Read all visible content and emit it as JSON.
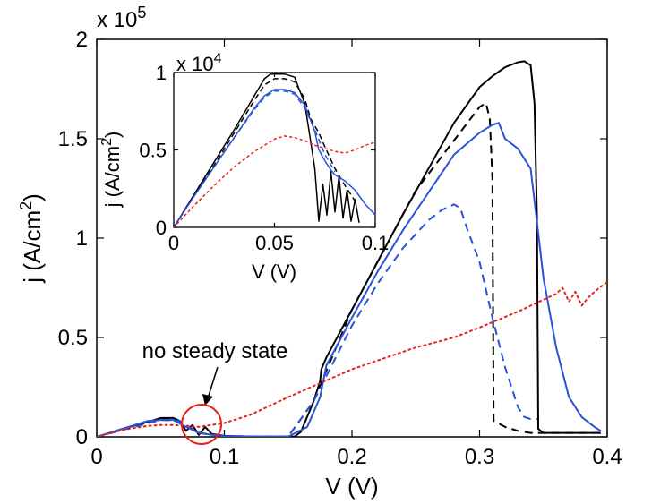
{
  "chart_data": [
    {
      "type": "line",
      "panel": "main",
      "xlabel": "V (V)",
      "ylabel_main": "j (A/cm",
      "ylabel_sup": "2",
      "ylabel_close": ")",
      "xlim": [
        0,
        0.4
      ],
      "ylim": [
        0,
        200000
      ],
      "x_ticks": [
        0,
        0.1,
        0.2,
        0.3,
        0.4
      ],
      "x_tick_labels": [
        "0",
        "0.1",
        "0.2",
        "0.3",
        "0.4"
      ],
      "y_ticks": [
        0,
        50000,
        100000,
        150000,
        200000
      ],
      "y_tick_labels": [
        "0",
        "0.5",
        "1",
        "1.5",
        "2"
      ],
      "exponent_prefix": "x 10",
      "exponent_power": "5",
      "series": [
        {
          "name": "black-solid",
          "color": "#000000",
          "style": "solid",
          "x": [
            0,
            0.02,
            0.04,
            0.05,
            0.06,
            0.065,
            0.07,
            0.075,
            0.08,
            0.085,
            0.09,
            0.1,
            0.12,
            0.14,
            0.155,
            0.16,
            0.17,
            0.175,
            0.176,
            0.18,
            0.2,
            0.22,
            0.24,
            0.26,
            0.28,
            0.3,
            0.31,
            0.32,
            0.33,
            0.335,
            0.34,
            0.343,
            0.345,
            0.346,
            0.35,
            0.36,
            0.38,
            0.395
          ],
          "y": [
            0,
            4000,
            7500,
            9500,
            9500,
            8000,
            3000,
            6000,
            1000,
            5000,
            1500,
            500,
            200,
            100,
            100,
            2500,
            18000,
            28000,
            34000,
            40000,
            64000,
            88000,
            112000,
            135000,
            158000,
            176000,
            181500,
            186000,
            188500,
            189000,
            187000,
            168000,
            110000,
            4000,
            2000,
            2000,
            2000,
            2000
          ]
        },
        {
          "name": "black-dashed",
          "color": "#000000",
          "style": "dashed",
          "x": [
            0,
            0.05,
            0.065,
            0.08,
            0.1,
            0.15,
            0.17,
            0.2,
            0.25,
            0.3,
            0.305,
            0.308,
            0.31,
            0.311,
            0.32,
            0.33,
            0.34,
            0.36,
            0.38,
            0.395
          ],
          "y": [
            0,
            9000,
            8000,
            2000,
            300,
            100,
            18000,
            64000,
            124000,
            166000,
            168000,
            160000,
            130000,
            8000,
            5000,
            3000,
            2000,
            2000,
            2000,
            2000
          ]
        },
        {
          "name": "blue-solid",
          "color": "#2a52d8",
          "style": "solid",
          "x": [
            0,
            0.02,
            0.04,
            0.05,
            0.06,
            0.07,
            0.08,
            0.09,
            0.1,
            0.12,
            0.15,
            0.165,
            0.175,
            0.18,
            0.2,
            0.22,
            0.24,
            0.26,
            0.28,
            0.3,
            0.31,
            0.315,
            0.32,
            0.33,
            0.34,
            0.345,
            0.35,
            0.36,
            0.37,
            0.38,
            0.39,
            0.395
          ],
          "y": [
            0,
            4000,
            8000,
            8500,
            8500,
            5000,
            2000,
            1000,
            300,
            100,
            100,
            5000,
            20000,
            36000,
            60000,
            83000,
            104000,
            123000,
            142000,
            153000,
            157000,
            158000,
            150000,
            145000,
            135000,
            108000,
            80000,
            45000,
            20000,
            10000,
            5000,
            3000
          ]
        },
        {
          "name": "blue-dashed",
          "color": "#2a52d8",
          "style": "dashed",
          "x": [
            0,
            0.05,
            0.065,
            0.08,
            0.1,
            0.15,
            0.17,
            0.2,
            0.22,
            0.24,
            0.26,
            0.27,
            0.28,
            0.285,
            0.29,
            0.3,
            0.31,
            0.32,
            0.33,
            0.335,
            0.34,
            0.345
          ],
          "y": [
            0,
            8500,
            8000,
            2000,
            300,
            100,
            18000,
            56000,
            77000,
            95000,
            109000,
            114000,
            117000,
            115000,
            105000,
            88000,
            60000,
            35000,
            15000,
            10000,
            9000,
            9000
          ]
        },
        {
          "name": "red-dotted",
          "color": "#e8201a",
          "style": "dotted",
          "x": [
            0,
            0.02,
            0.04,
            0.05,
            0.06,
            0.07,
            0.08,
            0.1,
            0.12,
            0.15,
            0.2,
            0.25,
            0.28,
            0.3,
            0.33,
            0.35,
            0.36,
            0.365,
            0.37,
            0.375,
            0.38,
            0.385,
            0.39,
            0.4
          ],
          "y": [
            0,
            3500,
            5500,
            6000,
            6000,
            5500,
            5000,
            7000,
            11000,
            20000,
            34000,
            45000,
            50000,
            55000,
            63000,
            69000,
            72000,
            75000,
            68000,
            73000,
            66000,
            70000,
            73000,
            78000
          ]
        }
      ],
      "annotation": {
        "text": "no steady state",
        "target_x": 0.083,
        "target_y": 8000
      }
    },
    {
      "type": "line",
      "panel": "inset",
      "xlabel": "V (V)",
      "ylabel_main": "j (A/cm",
      "ylabel_sup": "2",
      "ylabel_close": ")",
      "xlim": [
        0,
        0.1
      ],
      "ylim": [
        0,
        10000
      ],
      "x_ticks": [
        0,
        0.05,
        0.1
      ],
      "x_tick_labels": [
        "0",
        "0.05",
        "0.1"
      ],
      "y_ticks": [
        0,
        5000,
        10000
      ],
      "y_tick_labels": [
        "0",
        "0.5",
        "1"
      ],
      "exponent_prefix": "x 10",
      "exponent_power": "4",
      "series": [
        {
          "name": "inset-black-solid",
          "color": "#000000",
          "style": "solid",
          "x": [
            0,
            0.01,
            0.02,
            0.03,
            0.04,
            0.045,
            0.048,
            0.05,
            0.055,
            0.06,
            0.062,
            0.065,
            0.068,
            0.07,
            0.072,
            0.074,
            0.076,
            0.078,
            0.08,
            0.082,
            0.084,
            0.086,
            0.088,
            0.09,
            0.092
          ],
          "y": [
            0,
            2100,
            4200,
            6300,
            8500,
            9600,
            9900,
            9900,
            9900,
            9700,
            9000,
            8000,
            5500,
            3800,
            400,
            2800,
            800,
            3600,
            1000,
            3300,
            600,
            2400,
            400,
            1800,
            300
          ]
        },
        {
          "name": "inset-black-dashed",
          "color": "#000000",
          "style": "dashed",
          "x": [
            0,
            0.01,
            0.02,
            0.03,
            0.04,
            0.045,
            0.05,
            0.055,
            0.06,
            0.065,
            0.068,
            0.072,
            0.075,
            0.08,
            0.085,
            0.09
          ],
          "y": [
            0,
            2000,
            4000,
            6100,
            8200,
            9200,
            9600,
            9600,
            9400,
            8300,
            7000,
            6100,
            5200,
            3800,
            2700,
            1700
          ]
        },
        {
          "name": "inset-blue-solid",
          "color": "#2a52d8",
          "style": "solid",
          "x": [
            0,
            0.01,
            0.02,
            0.03,
            0.04,
            0.045,
            0.05,
            0.055,
            0.06,
            0.065,
            0.07,
            0.072,
            0.075,
            0.078,
            0.08,
            0.085,
            0.09,
            0.095,
            0.1
          ],
          "y": [
            0,
            2000,
            3900,
            5800,
            7700,
            8500,
            8900,
            8900,
            8700,
            7900,
            6200,
            5000,
            4300,
            3700,
            3400,
            3000,
            2400,
            1500,
            800
          ]
        },
        {
          "name": "inset-blue-dashed",
          "color": "#2a52d8",
          "style": "dashed",
          "x": [
            0,
            0.01,
            0.02,
            0.03,
            0.04,
            0.045,
            0.05,
            0.055,
            0.06,
            0.065,
            0.07,
            0.075,
            0.08
          ],
          "y": [
            0,
            2000,
            3900,
            5800,
            7600,
            8400,
            8800,
            8800,
            8600,
            7700,
            6300,
            4700,
            3600
          ]
        },
        {
          "name": "inset-red-dotted",
          "color": "#e8201a",
          "style": "dotted",
          "x": [
            0,
            0.01,
            0.02,
            0.03,
            0.04,
            0.05,
            0.055,
            0.06,
            0.065,
            0.07,
            0.075,
            0.08,
            0.085,
            0.09,
            0.095,
            0.1
          ],
          "y": [
            0,
            1400,
            2700,
            3900,
            4900,
            5700,
            5900,
            5800,
            5600,
            5300,
            5100,
            4900,
            4800,
            5000,
            5300,
            5500
          ]
        }
      ]
    }
  ]
}
